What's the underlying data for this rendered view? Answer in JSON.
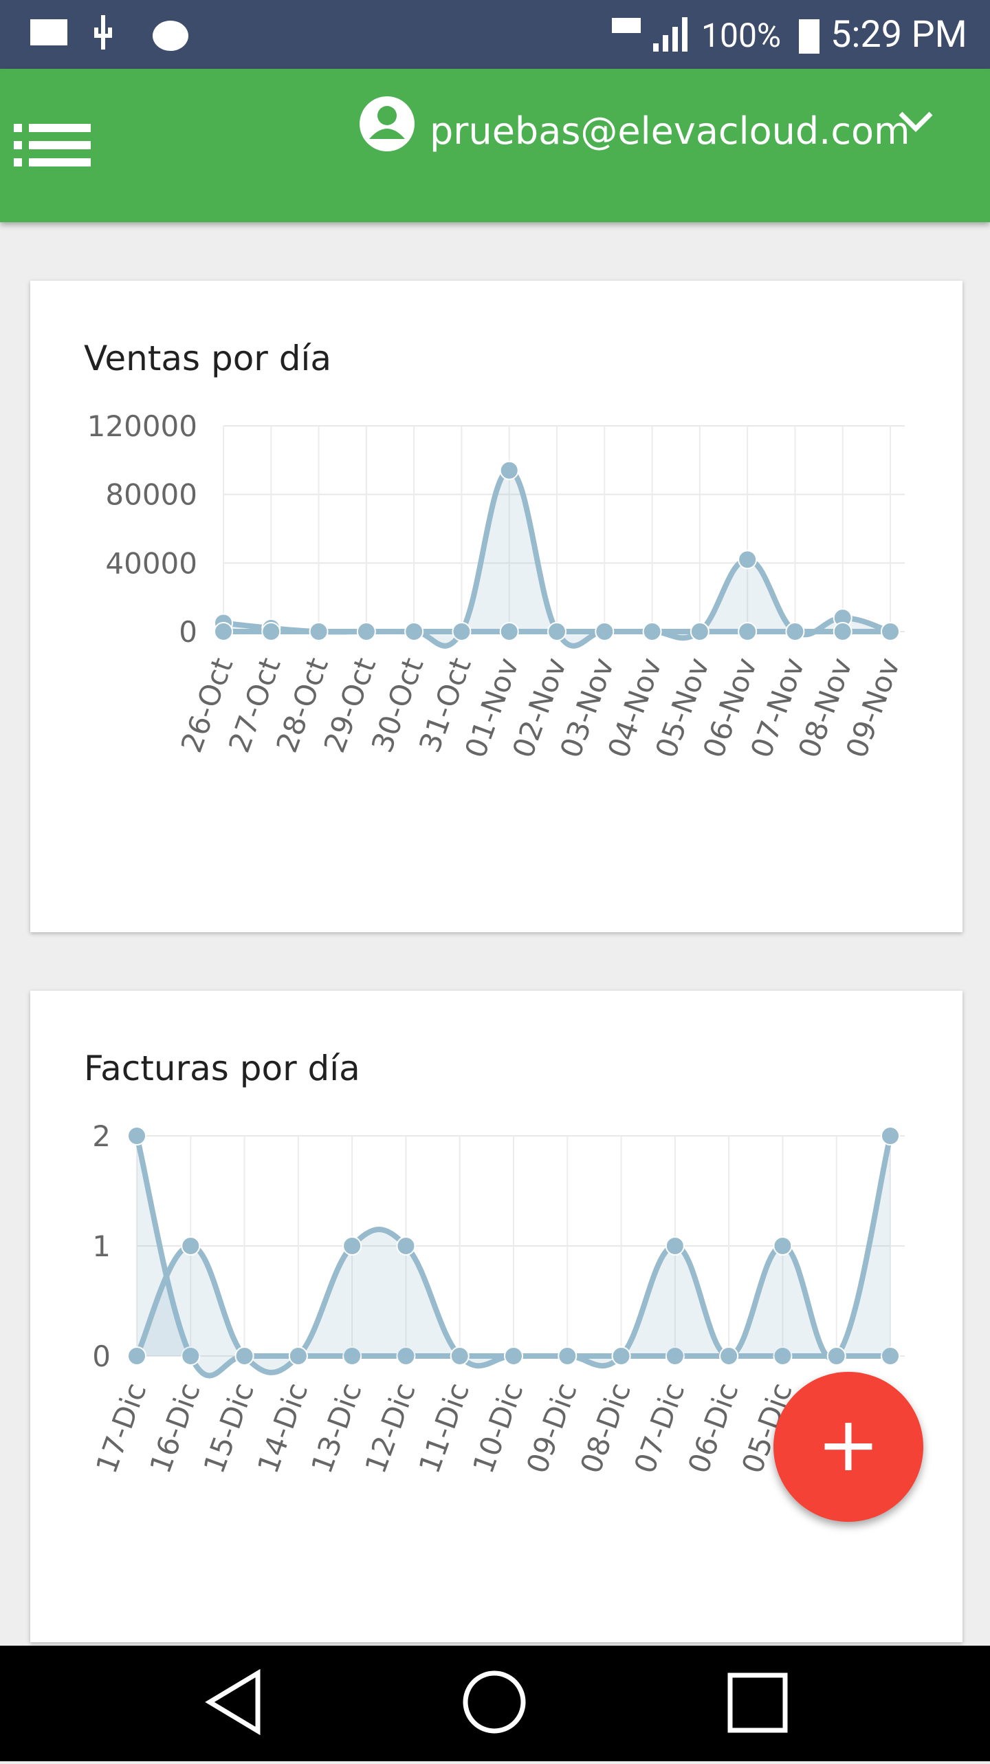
{
  "status_bar": {
    "battery": "100%",
    "time": "5:29 PM"
  },
  "header": {
    "user": "pruebas@elevacloud.com"
  },
  "fab": {
    "label": "+"
  },
  "chart_data": [
    {
      "type": "line",
      "title": "Ventas por día",
      "categories": [
        "26-Oct",
        "27-Oct",
        "28-Oct",
        "29-Oct",
        "30-Oct",
        "31-Oct",
        "01-Nov",
        "02-Nov",
        "03-Nov",
        "04-Nov",
        "05-Nov",
        "06-Nov",
        "07-Nov",
        "08-Nov",
        "09-Nov"
      ],
      "series": [
        {
          "color": "#97bbcd",
          "values": [
            5000,
            2000,
            0,
            0,
            0,
            0,
            94000,
            0,
            0,
            0,
            0,
            42000,
            0,
            8000,
            0
          ]
        },
        {
          "color": "#97bbcd",
          "values": [
            0,
            0,
            0,
            0,
            0,
            0,
            0,
            0,
            0,
            0,
            0,
            0,
            0,
            0,
            0
          ]
        }
      ],
      "ylim": [
        0,
        120000
      ],
      "yticks": [
        0,
        40000,
        80000,
        120000
      ],
      "grid": true
    },
    {
      "type": "line",
      "title": "Facturas por día",
      "categories": [
        "17-Dic",
        "16-Dic",
        "15-Dic",
        "14-Dic",
        "13-Dic",
        "12-Dic",
        "11-Dic",
        "10-Dic",
        "09-Dic",
        "08-Dic",
        "07-Dic",
        "06-Dic",
        "05-Dic",
        null,
        null
      ],
      "series": [
        {
          "color": "#97bbcd",
          "values": [
            2,
            0,
            0,
            0,
            0,
            0,
            0,
            0,
            0,
            0,
            0,
            0,
            0,
            0,
            0
          ]
        },
        {
          "color": "#97bbcd",
          "values": [
            0,
            1,
            0,
            0,
            1,
            1,
            0,
            0,
            0,
            0,
            1,
            0,
            1,
            0,
            2
          ]
        }
      ],
      "ylim": [
        0,
        2
      ],
      "yticks": [
        0,
        1,
        2
      ],
      "grid": true
    }
  ]
}
